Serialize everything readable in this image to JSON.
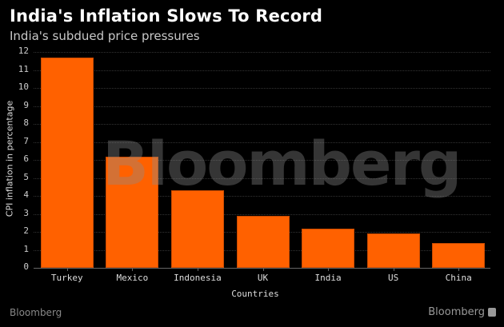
{
  "header": {
    "title": "India's Inflation Slows To Record",
    "subtitle": "India's subdued price pressures"
  },
  "watermark": "Bloomberg",
  "footer": {
    "source": "Bloomberg",
    "brand": "Bloomberg"
  },
  "chart_data": {
    "type": "bar",
    "title": "India's Inflation Slows To Record",
    "subtitle": "India's subdued price pressures",
    "xlabel": "Countries",
    "ylabel": "CPI inflation in percentage",
    "categories": [
      "Turkey",
      "Mexico",
      "Indonesia",
      "UK",
      "India",
      "US",
      "China"
    ],
    "values": [
      11.7,
      6.2,
      4.3,
      2.9,
      2.2,
      1.9,
      1.4
    ],
    "ylim": [
      0,
      12
    ],
    "yticks": [
      0,
      1,
      2,
      3,
      4,
      5,
      6,
      7,
      8,
      9,
      10,
      11,
      12
    ],
    "grid": true,
    "legend": "none",
    "bar_color": "#ff6100"
  }
}
